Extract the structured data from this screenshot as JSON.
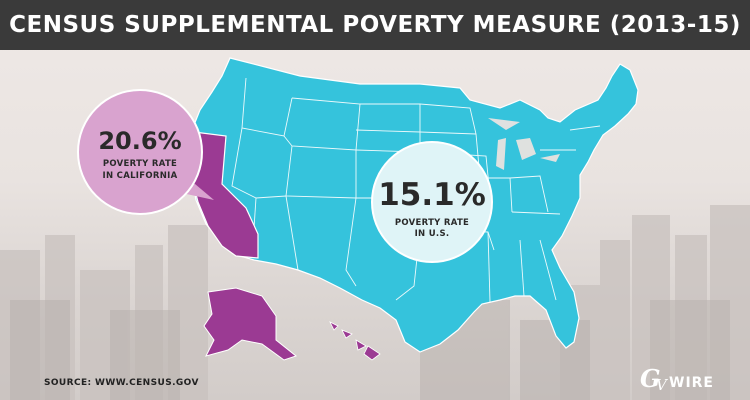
{
  "banner": {
    "title": "CENSUS SUPPLEMENTAL POVERTY MEASURE (2013-15)"
  },
  "california": {
    "value": "20.6%",
    "label_line1": "POVERTY RATE",
    "label_line2": "IN CALIFORNIA"
  },
  "us": {
    "value": "15.1%",
    "label_line1": "POVERTY RATE",
    "label_line2": "IN U.S."
  },
  "footer": {
    "source": "SOURCE: WWW.CENSUS.GOV"
  },
  "logo": {
    "text": "GVWIRE"
  },
  "colors": {
    "banner_bg": "#3a3a3a",
    "map_fill": "#35c3dc",
    "california_fill": "#9b3a93",
    "california_bubble": "#d9a3cf",
    "us_bubble": "#dff4f7"
  }
}
